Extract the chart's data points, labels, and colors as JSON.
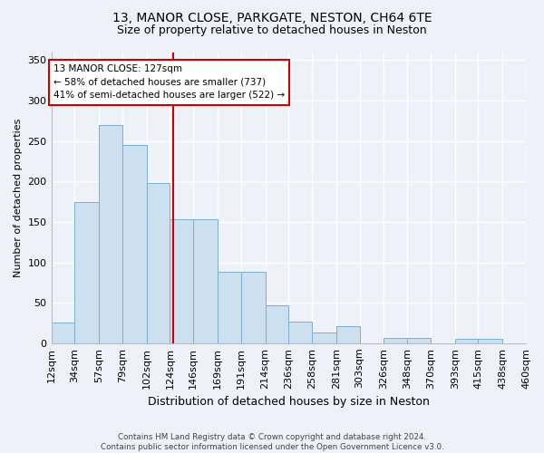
{
  "title_line1": "13, MANOR CLOSE, PARKGATE, NESTON, CH64 6TE",
  "title_line2": "Size of property relative to detached houses in Neston",
  "xlabel": "Distribution of detached houses by size in Neston",
  "ylabel": "Number of detached properties",
  "bar_edges": [
    12,
    34,
    57,
    79,
    102,
    124,
    146,
    169,
    191,
    214,
    236,
    258,
    281,
    303,
    326,
    348,
    370,
    393,
    415,
    438,
    460
  ],
  "bar_heights": [
    25,
    175,
    270,
    245,
    198,
    153,
    153,
    88,
    88,
    47,
    27,
    13,
    21,
    0,
    6,
    6,
    0,
    5,
    5,
    0
  ],
  "bar_color": "#cce0f0",
  "bar_edgecolor": "#7aaecf",
  "property_sqm": 127,
  "vline_color": "#cc0000",
  "annotation_text": "13 MANOR CLOSE: 127sqm\n← 58% of detached houses are smaller (737)\n41% of semi-detached houses are larger (522) →",
  "annotation_box_edgecolor": "#cc0000",
  "annotation_box_facecolor": "#ffffff",
  "ylim": [
    0,
    360
  ],
  "tick_labels": [
    "12sqm",
    "34sqm",
    "57sqm",
    "79sqm",
    "102sqm",
    "124sqm",
    "146sqm",
    "169sqm",
    "191sqm",
    "214sqm",
    "236sqm",
    "258sqm",
    "281sqm",
    "303sqm",
    "326sqm",
    "348sqm",
    "370sqm",
    "393sqm",
    "415sqm",
    "438sqm",
    "460sqm"
  ],
  "footnote": "Contains HM Land Registry data © Crown copyright and database right 2024.\nContains public sector information licensed under the Open Government Licence v3.0.",
  "bg_color": "#eef2f8",
  "grid_color": "#ffffff"
}
